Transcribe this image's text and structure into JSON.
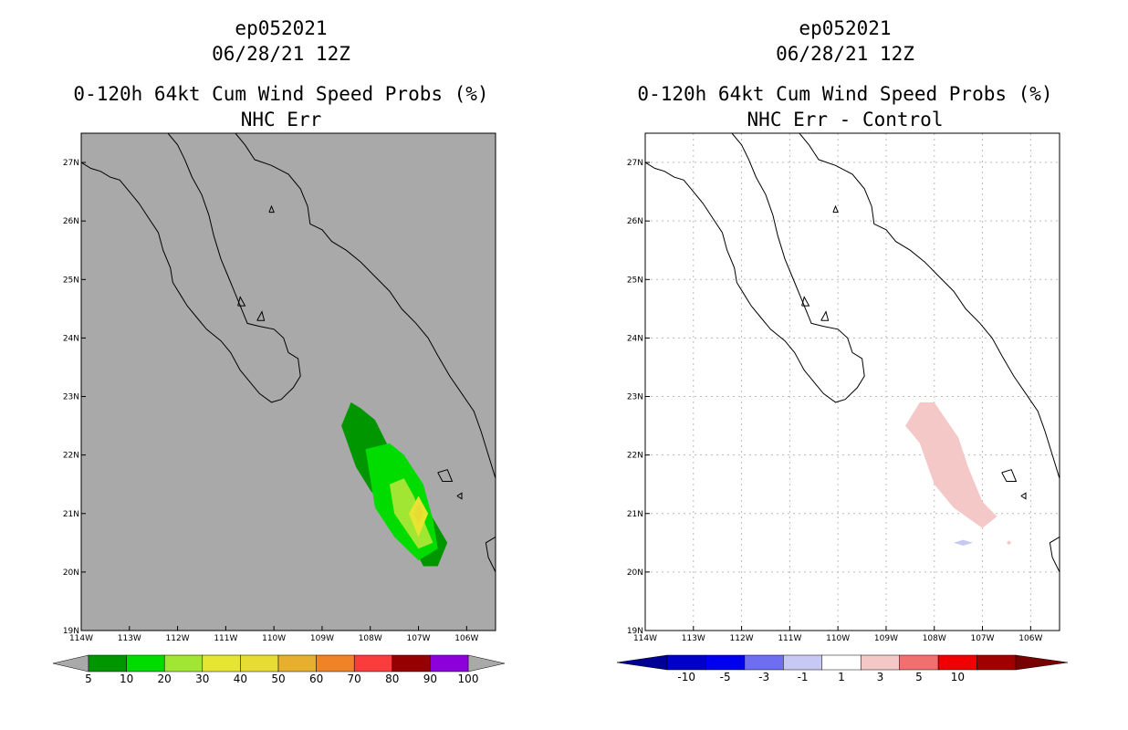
{
  "panels": [
    {
      "title_line1": "ep052021",
      "title_line2": "06/28/21 12Z",
      "title_line3": "0-120h 64kt Cum Wind Speed Probs (%)",
      "title_line4": "NHC Err"
    },
    {
      "title_line1": "ep052021",
      "title_line2": "06/28/21 12Z",
      "title_line3": "0-120h 64kt Cum Wind Speed Probs (%)",
      "title_line4": "NHC Err - Control"
    }
  ],
  "colors": {
    "land_background": "#a9a9a9",
    "coast": "#000000",
    "grid": "#bbbbbb"
  },
  "chart_data": [
    {
      "type": "contour-map",
      "title": "NHC Err",
      "xlim": [
        -114,
        -105.4
      ],
      "ylim": [
        19,
        27.5
      ],
      "lon_ticks": [
        "114W",
        "113W",
        "112W",
        "111W",
        "110W",
        "109W",
        "108W",
        "107W",
        "106W"
      ],
      "lat_ticks": [
        "19N",
        "20N",
        "21N",
        "22N",
        "23N",
        "24N",
        "25N",
        "26N",
        "27N"
      ],
      "grid": false,
      "colorbar": {
        "labels": [
          "5",
          "10",
          "20",
          "30",
          "40",
          "50",
          "60",
          "70",
          "80",
          "90",
          "100"
        ],
        "colors": [
          "#009600",
          "#00dc00",
          "#a0e632",
          "#e6e632",
          "#e6dc32",
          "#e6af2d",
          "#f08228",
          "#fa3c3c",
          "#960000",
          "#8c00dc"
        ],
        "under": "#a9a9a9",
        "over": "#a9a9a9"
      },
      "contours": [
        {
          "level": "5-10",
          "color": "#009600",
          "lon": [
            -108.4,
            -108.6,
            -108.3,
            -108.0,
            -107.6,
            -107.2,
            -106.9,
            -106.6,
            -106.4,
            -106.9,
            -107.6,
            -107.9,
            -108.2,
            -108.4
          ],
          "lat": [
            22.9,
            22.5,
            21.8,
            21.4,
            21.0,
            20.6,
            20.1,
            20.1,
            20.5,
            21.2,
            22.1,
            22.6,
            22.8,
            22.9
          ]
        },
        {
          "level": "10-20",
          "color": "#00dc00",
          "lon": [
            -108.1,
            -107.9,
            -107.5,
            -107.0,
            -106.6,
            -106.7,
            -106.9,
            -107.3,
            -107.6,
            -108.1,
            -108.1
          ],
          "lat": [
            22.1,
            21.1,
            20.6,
            20.2,
            20.4,
            20.9,
            21.5,
            22.0,
            22.2,
            22.1,
            22.1
          ]
        },
        {
          "level": "20-30",
          "color": "#a0e632",
          "lon": [
            -107.6,
            -107.5,
            -107.0,
            -106.7,
            -106.9,
            -107.1,
            -107.3,
            -107.6
          ],
          "lat": [
            21.5,
            21.0,
            20.4,
            20.5,
            20.9,
            21.3,
            21.6,
            21.5
          ]
        },
        {
          "level": "30-40",
          "color": "#e6e632",
          "lon": [
            -107.2,
            -107.0,
            -106.8,
            -107.0,
            -107.2
          ],
          "lat": [
            21.0,
            21.3,
            21.0,
            20.6,
            21.0
          ]
        },
        {
          "level": "40-50",
          "color": "#e6dc32",
          "lon": [
            -107.1,
            -107.0,
            -106.9,
            -107.0,
            -107.1
          ],
          "lat": [
            21.0,
            21.2,
            21.0,
            20.8,
            21.0
          ]
        }
      ]
    },
    {
      "type": "contour-map",
      "title": "NHC Err - Control",
      "xlim": [
        -114,
        -105.4
      ],
      "ylim": [
        19,
        27.5
      ],
      "lon_ticks": [
        "114W",
        "113W",
        "112W",
        "111W",
        "110W",
        "109W",
        "108W",
        "107W",
        "106W"
      ],
      "lat_ticks": [
        "19N",
        "20N",
        "21N",
        "22N",
        "23N",
        "24N",
        "25N",
        "26N",
        "27N"
      ],
      "grid": true,
      "colorbar": {
        "labels": [
          "-10",
          "-5",
          "-3",
          "-1",
          "1",
          "3",
          "5",
          "10"
        ],
        "colors": [
          "#0000c8",
          "#0000f0",
          "#6e6ef0",
          "#c8c8f5",
          "#ffffff",
          "#f5c8c8",
          "#f07070",
          "#f00000",
          "#a00000"
        ],
        "under": "#000096",
        "over": "#780000"
      },
      "contours": [
        {
          "level": "1-3",
          "color": "#f5c8c8",
          "lon": [
            -108.6,
            -108.3,
            -108.0,
            -107.5,
            -107.3,
            -107.0,
            -106.7,
            -107.0,
            -107.6,
            -108.0,
            -108.3,
            -108.6
          ],
          "lat": [
            22.5,
            22.9,
            22.9,
            22.3,
            21.8,
            21.2,
            20.95,
            20.75,
            21.1,
            21.5,
            22.2,
            22.5
          ]
        },
        {
          "level": "-3--1",
          "color": "#c8c8f5",
          "lon": [
            -107.6,
            -107.4,
            -107.2,
            -107.4,
            -107.6
          ],
          "lat": [
            20.5,
            20.55,
            20.5,
            20.45,
            20.5
          ]
        },
        {
          "level": "1-3",
          "color": "#f5c8c8",
          "lon": [
            -106.5,
            -106.45,
            -106.4,
            -106.45,
            -106.5
          ],
          "lat": [
            20.5,
            20.54,
            20.5,
            20.46,
            20.5
          ]
        }
      ]
    }
  ]
}
